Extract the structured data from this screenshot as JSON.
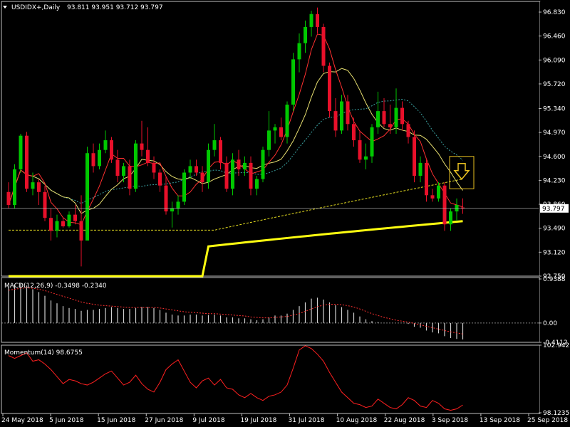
{
  "header": {
    "symbol": "USDIDX+,Daily",
    "ohlc": "93.811 93.951 93.712 93.797"
  },
  "colors": {
    "background": "#000000",
    "bull": "#00c800",
    "bear": "#e8102a",
    "ma_fast": "#ff3030",
    "ma_mid": "#e8e070",
    "ma_slow": "#3aa0a0",
    "ma_dashed": "#e8e020",
    "ma_200": "#ffff10",
    "macd_hist": "#d0d0d0",
    "macd_signal": "#ff3030",
    "momentum": "#ff2020",
    "signal_box": "#e8c020"
  },
  "chart_data": [
    {
      "type": "candlestick",
      "panel": "price",
      "ylim": [
        92.75,
        96.83
      ],
      "ticks": [
        "96.830",
        "96.460",
        "96.090",
        "95.720",
        "95.340",
        "94.970",
        "94.600",
        "94.230",
        "93.860",
        "93.490",
        "93.120",
        "92.750"
      ],
      "tick_values": [
        96.83,
        96.46,
        96.09,
        95.72,
        95.34,
        94.97,
        94.6,
        94.23,
        93.86,
        93.49,
        93.12,
        92.75
      ],
      "current_price": "93.797",
      "current_value": 93.797,
      "candles": [
        [
          94.05,
          94.2,
          93.8,
          93.85
        ],
        [
          93.85,
          94.48,
          93.8,
          94.4
        ],
        [
          94.4,
          94.95,
          94.35,
          94.92
        ],
        [
          94.92,
          94.98,
          94.05,
          94.1
        ],
        [
          94.1,
          94.35,
          94.0,
          94.2
        ],
        [
          94.2,
          94.25,
          93.85,
          94.05
        ],
        [
          94.05,
          94.15,
          93.6,
          93.65
        ],
        [
          93.65,
          93.8,
          93.3,
          93.45
        ],
        [
          93.45,
          93.7,
          93.35,
          93.6
        ],
        [
          93.6,
          93.65,
          93.5,
          93.52
        ],
        [
          93.52,
          93.75,
          93.5,
          93.7
        ],
        [
          93.7,
          93.85,
          93.55,
          93.6
        ],
        [
          93.6,
          94.0,
          92.9,
          93.3
        ],
        [
          93.3,
          94.75,
          93.3,
          94.65
        ],
        [
          94.65,
          94.8,
          94.35,
          94.45
        ],
        [
          94.45,
          94.8,
          94.4,
          94.7
        ],
        [
          94.7,
          95.0,
          94.65,
          94.85
        ],
        [
          94.85,
          94.9,
          94.5,
          94.55
        ],
        [
          94.55,
          94.7,
          94.2,
          94.3
        ],
        [
          94.3,
          94.5,
          94.2,
          94.45
        ],
        [
          94.45,
          94.55,
          94.0,
          94.1
        ],
        [
          94.1,
          94.85,
          94.05,
          94.8
        ],
        [
          94.8,
          95.15,
          94.6,
          94.7
        ],
        [
          94.7,
          95.05,
          94.45,
          94.5
        ],
        [
          94.5,
          94.6,
          94.25,
          94.35
        ],
        [
          94.35,
          94.4,
          94.05,
          94.15
        ],
        [
          94.15,
          94.3,
          93.7,
          93.75
        ],
        [
          93.75,
          93.9,
          93.5,
          93.8
        ],
        [
          93.8,
          94.0,
          93.7,
          93.9
        ],
        [
          93.9,
          94.4,
          93.85,
          94.35
        ],
        [
          94.35,
          94.55,
          94.25,
          94.45
        ],
        [
          94.45,
          94.55,
          94.3,
          94.35
        ],
        [
          94.35,
          94.45,
          94.05,
          94.2
        ],
        [
          94.2,
          94.8,
          94.1,
          94.7
        ],
        [
          94.7,
          95.1,
          94.6,
          94.85
        ],
        [
          94.85,
          94.9,
          94.4,
          94.5
        ],
        [
          94.5,
          94.6,
          94.05,
          94.1
        ],
        [
          94.1,
          94.65,
          94.0,
          94.55
        ],
        [
          94.55,
          94.7,
          94.3,
          94.4
        ],
        [
          94.4,
          94.6,
          94.3,
          94.5
        ],
        [
          94.5,
          94.6,
          94.0,
          94.1
        ],
        [
          94.1,
          94.3,
          94.0,
          94.25
        ],
        [
          94.25,
          94.75,
          94.2,
          94.7
        ],
        [
          94.7,
          95.3,
          94.6,
          95.0
        ],
        [
          95.0,
          95.1,
          94.8,
          95.05
        ],
        [
          95.05,
          95.2,
          94.85,
          94.9
        ],
        [
          94.9,
          95.45,
          94.8,
          95.4
        ],
        [
          95.4,
          96.2,
          95.3,
          96.1
        ],
        [
          96.1,
          96.5,
          95.9,
          96.35
        ],
        [
          96.35,
          96.7,
          96.2,
          96.6
        ],
        [
          96.6,
          96.85,
          96.45,
          96.8
        ],
        [
          96.8,
          96.9,
          96.5,
          96.6
        ],
        [
          96.6,
          96.65,
          95.9,
          96.0
        ],
        [
          96.0,
          96.05,
          95.2,
          95.3
        ],
        [
          95.3,
          95.5,
          94.9,
          95.0
        ],
        [
          95.0,
          95.55,
          94.95,
          95.45
        ],
        [
          95.45,
          95.55,
          95.0,
          95.1
        ],
        [
          95.1,
          95.2,
          94.75,
          94.85
        ],
        [
          94.85,
          95.0,
          94.5,
          94.55
        ],
        [
          94.55,
          94.8,
          94.4,
          94.6
        ],
        [
          94.6,
          95.1,
          94.5,
          95.05
        ],
        [
          95.05,
          95.6,
          94.95,
          95.3
        ],
        [
          95.3,
          95.5,
          95.05,
          95.1
        ],
        [
          95.1,
          95.4,
          94.95,
          95.05
        ],
        [
          95.05,
          95.65,
          94.95,
          95.35
        ],
        [
          95.35,
          95.45,
          95.0,
          95.1
        ],
        [
          95.1,
          95.15,
          94.8,
          94.9
        ],
        [
          94.9,
          95.0,
          94.2,
          94.3
        ],
        [
          94.3,
          94.6,
          94.2,
          94.5
        ],
        [
          94.5,
          94.55,
          93.9,
          94.0
        ],
        [
          94.0,
          94.1,
          93.9,
          93.95
        ],
        [
          93.95,
          94.2,
          93.9,
          94.15
        ],
        [
          94.15,
          94.2,
          93.45,
          93.55
        ],
        [
          93.55,
          93.8,
          93.45,
          93.75
        ],
        [
          93.75,
          93.95,
          93.6,
          93.85
        ],
        [
          93.811,
          93.951,
          93.712,
          93.797
        ]
      ]
    },
    {
      "type": "line",
      "panel": "macd",
      "label": "MACD(12,26,9) -0.3498 -0.2340",
      "ylim": [
        -0.4112,
        0.9388
      ],
      "ticks": [
        "0.9388",
        "0.00",
        "-0.4112"
      ],
      "tick_values": [
        0.9388,
        0.0,
        -0.4112
      ],
      "histogram": [
        0.78,
        0.82,
        0.84,
        0.8,
        0.72,
        0.66,
        0.58,
        0.48,
        0.42,
        0.36,
        0.32,
        0.3,
        0.26,
        0.28,
        0.28,
        0.3,
        0.32,
        0.34,
        0.32,
        0.3,
        0.3,
        0.32,
        0.34,
        0.34,
        0.32,
        0.28,
        0.22,
        0.18,
        0.16,
        0.16,
        0.18,
        0.18,
        0.16,
        0.17,
        0.18,
        0.16,
        0.12,
        0.12,
        0.1,
        0.1,
        0.08,
        0.06,
        0.08,
        0.12,
        0.16,
        0.16,
        0.2,
        0.28,
        0.36,
        0.44,
        0.52,
        0.54,
        0.5,
        0.44,
        0.38,
        0.34,
        0.28,
        0.22,
        0.14,
        0.08,
        0.04,
        0.02,
        0.0,
        0.0,
        0.0,
        0.0,
        -0.02,
        -0.08,
        -0.1,
        -0.16,
        -0.2,
        -0.22,
        -0.28,
        -0.32,
        -0.34,
        -0.35
      ],
      "signal": [
        0.7,
        0.72,
        0.74,
        0.75,
        0.74,
        0.72,
        0.69,
        0.65,
        0.61,
        0.57,
        0.53,
        0.49,
        0.45,
        0.42,
        0.4,
        0.38,
        0.37,
        0.36,
        0.35,
        0.34,
        0.33,
        0.33,
        0.33,
        0.33,
        0.33,
        0.32,
        0.3,
        0.28,
        0.26,
        0.24,
        0.23,
        0.22,
        0.21,
        0.2,
        0.2,
        0.19,
        0.18,
        0.17,
        0.16,
        0.15,
        0.13,
        0.12,
        0.11,
        0.11,
        0.12,
        0.13,
        0.14,
        0.17,
        0.2,
        0.25,
        0.3,
        0.35,
        0.38,
        0.4,
        0.4,
        0.39,
        0.37,
        0.34,
        0.3,
        0.25,
        0.2,
        0.16,
        0.12,
        0.09,
        0.06,
        0.04,
        0.02,
        -0.01,
        -0.04,
        -0.07,
        -0.1,
        -0.13,
        -0.16,
        -0.19,
        -0.21,
        -0.234
      ]
    },
    {
      "type": "line",
      "panel": "momentum",
      "label": "Momentum(14) 98.6755",
      "ylim": [
        98.1235,
        102.9427
      ],
      "ticks": [
        "102.9427",
        "98.1235"
      ],
      "tick_values": [
        102.9427,
        98.1235
      ],
      "values": [
        102.2,
        102.0,
        102.2,
        102.4,
        101.8,
        101.9,
        101.6,
        101.2,
        100.7,
        100.2,
        100.5,
        100.4,
        100.2,
        100.1,
        100.3,
        100.6,
        100.9,
        101.1,
        100.6,
        100.1,
        100.3,
        100.8,
        100.2,
        99.8,
        99.6,
        100.3,
        101.2,
        101.6,
        101.9,
        101.1,
        100.3,
        99.9,
        100.4,
        100.6,
        100.1,
        100.5,
        99.9,
        99.8,
        99.4,
        99.2,
        99.5,
        99.2,
        99.0,
        99.3,
        99.4,
        99.6,
        100.1,
        101.3,
        102.6,
        102.9,
        102.7,
        102.3,
        101.8,
        101.0,
        100.3,
        99.6,
        99.2,
        98.8,
        98.7,
        98.5,
        98.6,
        99.1,
        98.8,
        98.5,
        98.4,
        98.7,
        99.2,
        99.0,
        98.6,
        98.5,
        99.0,
        98.8,
        98.4,
        98.3,
        98.4,
        98.6755
      ]
    }
  ],
  "date_labels": [
    {
      "label": "24 May 2018",
      "index": 0
    },
    {
      "label": "5 Jun 2018",
      "index": 8
    },
    {
      "label": "15 Jun 2018",
      "index": 16
    },
    {
      "label": "27 Jun 2018",
      "index": 24
    },
    {
      "label": "9 Jul 2018",
      "index": 32
    },
    {
      "label": "19 Jul 2018",
      "index": 40
    },
    {
      "label": "31 Jul 2018",
      "index": 48
    },
    {
      "label": "10 Aug 2018",
      "index": 56
    },
    {
      "label": "22 Aug 2018",
      "index": 64
    },
    {
      "label": "3 Sep 2018",
      "index": 72
    },
    {
      "label": "13 Sep 2018",
      "index": 80
    },
    {
      "label": "25 Sep 2018",
      "index": 88
    }
  ]
}
